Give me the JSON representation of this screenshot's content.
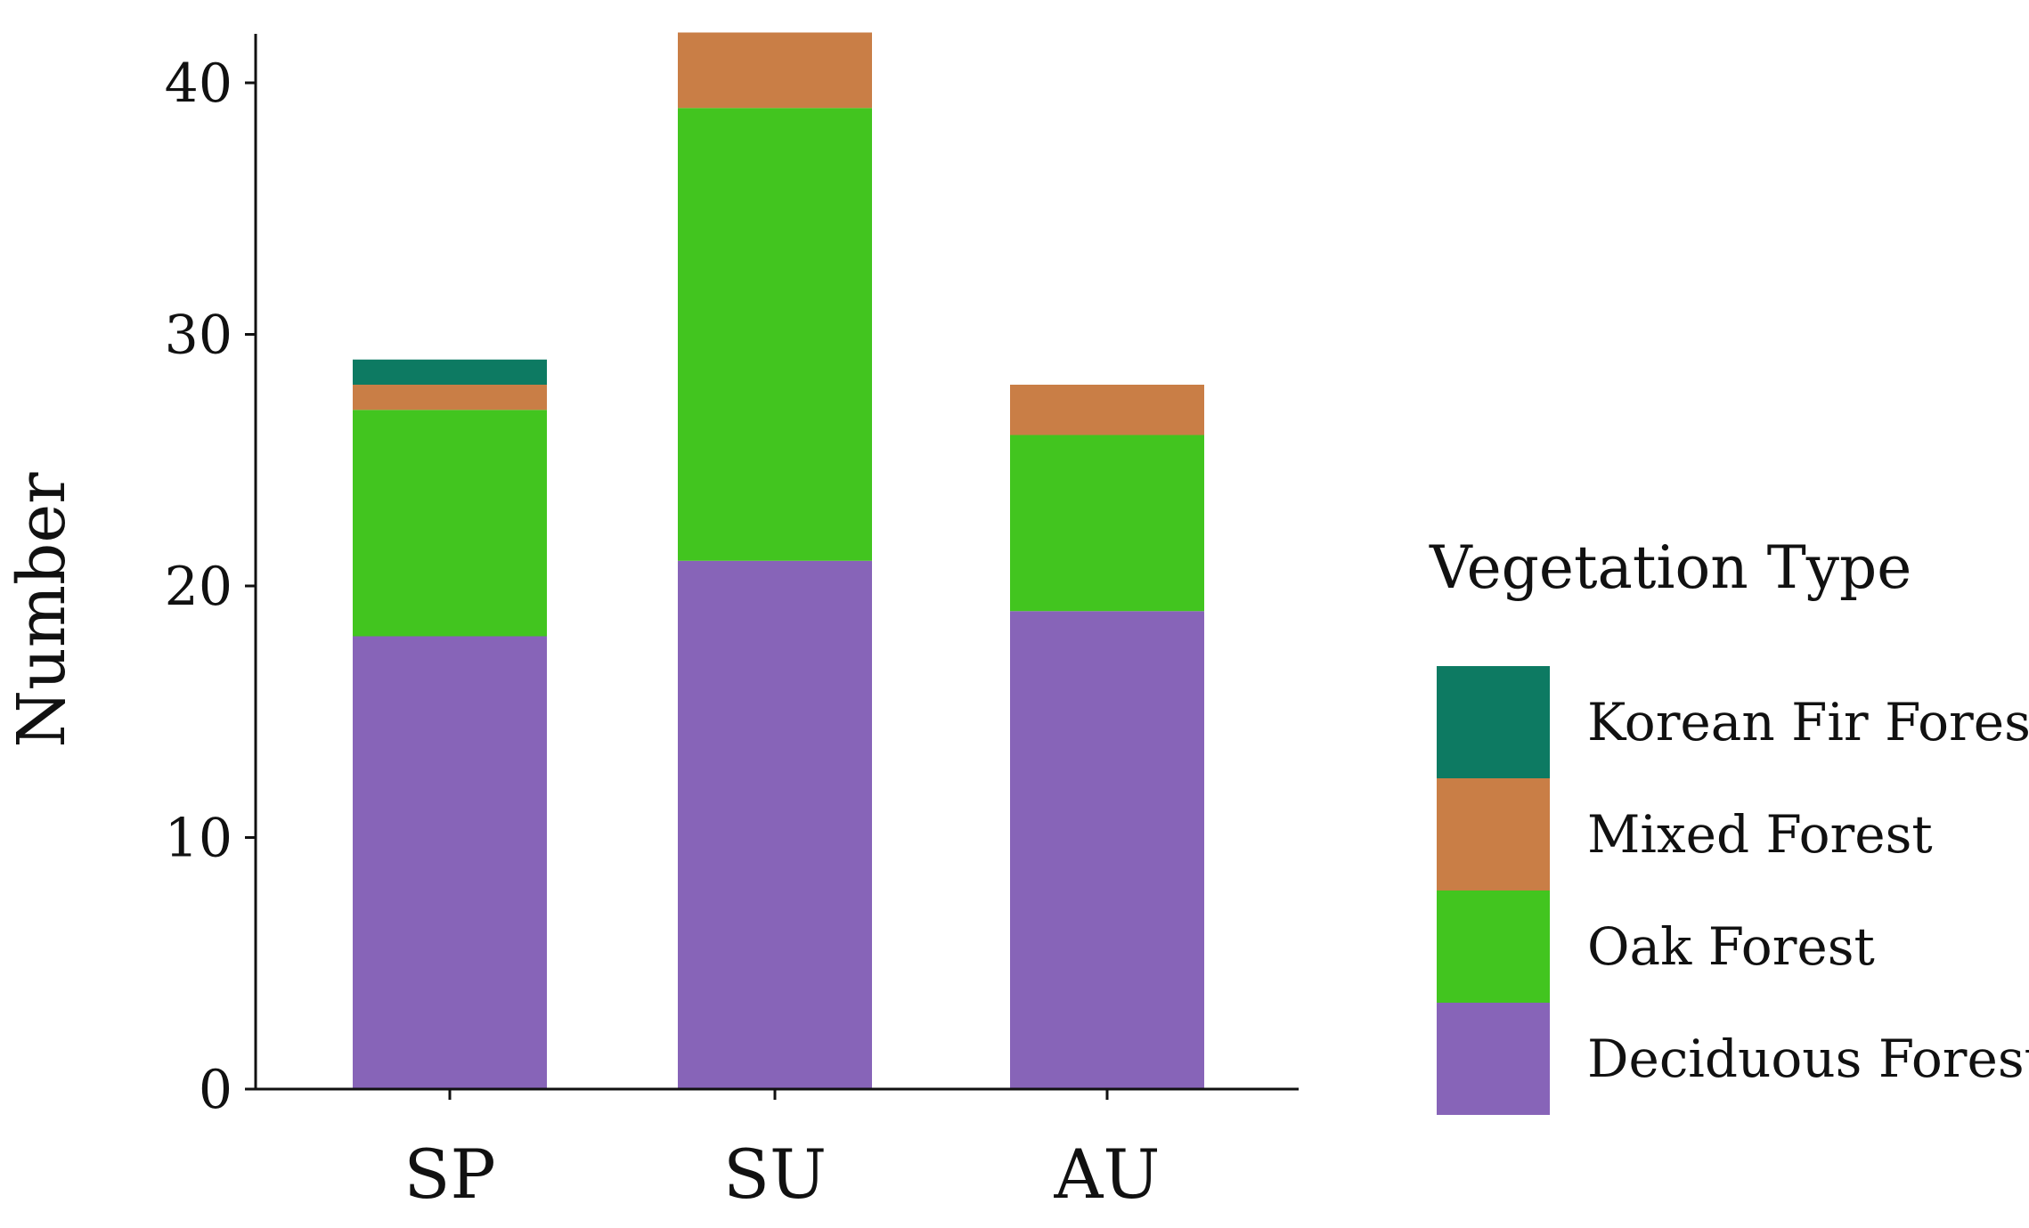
{
  "chart_data": {
    "type": "stacked-bar",
    "title": "",
    "xlabel": "",
    "ylabel": "Number",
    "ylim": [
      0,
      42
    ],
    "yticks": [
      0,
      10,
      20,
      30,
      40
    ],
    "grid": false,
    "categories": [
      "SP",
      "SU",
      "AU"
    ],
    "legend": {
      "title": "Vegetation Type",
      "placement": "right",
      "order": [
        "Korean Fir Forest",
        "Mixed Forest",
        "Oak Forest",
        "Deciduous Forest"
      ]
    },
    "series": [
      {
        "name": "Deciduous Forest",
        "color": "#8764b8",
        "values": [
          18,
          21,
          19
        ]
      },
      {
        "name": "Oak Forest",
        "color": "#42c51f",
        "values": [
          9,
          18,
          7
        ]
      },
      {
        "name": "Mixed Forest",
        "color": "#c97e46",
        "values": [
          1,
          3,
          2
        ]
      },
      {
        "name": "Korean Fir Forest",
        "color": "#0d7a62",
        "values": [
          1,
          0,
          0
        ]
      }
    ]
  }
}
